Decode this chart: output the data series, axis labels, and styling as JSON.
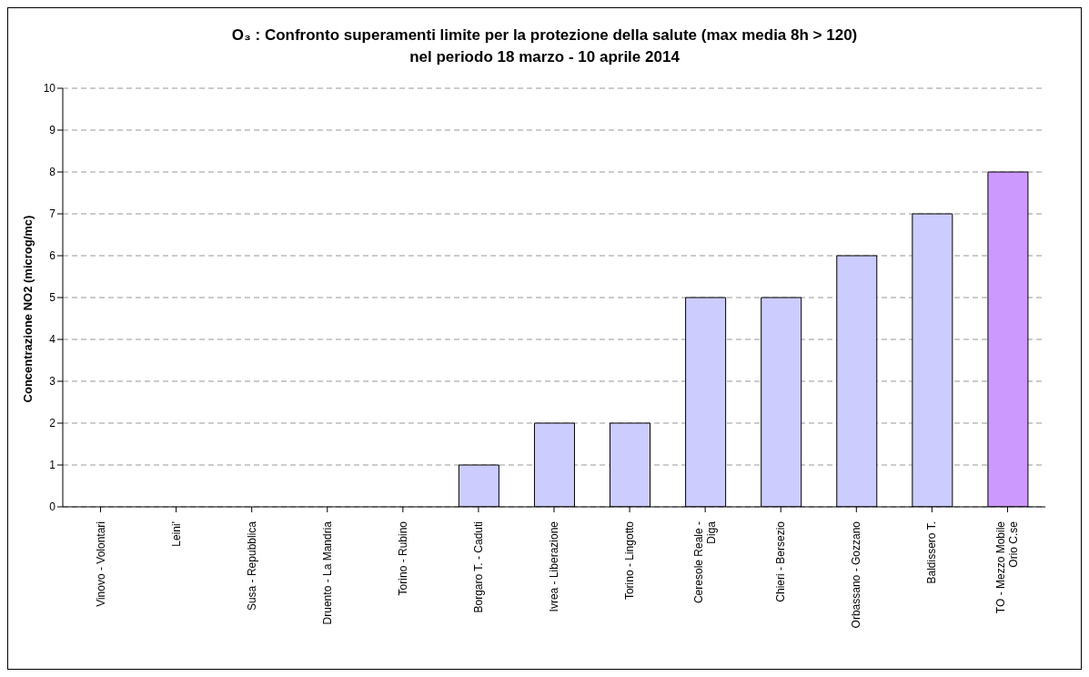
{
  "chart_data": {
    "type": "bar",
    "title": "O₃ : Confronto superamenti limite per la protezione della salute (max media 8h > 120)",
    "subtitle": "nel periodo  18 marzo - 10 aprile 2014",
    "ylabel": "Concentrazione NO2 (microg/mc)",
    "categories": [
      "Vinovo - Volontari",
      "Leini'",
      "Susa - Repubblica",
      "Druento - La Mandria",
      "Torino - Rubino",
      "Borgaro T. - Caduti",
      "Ivrea - Liberazione",
      "Torino - Lingotto",
      "Ceresole Reale - Diga",
      "Chieri - Bersezio",
      "Orbassano - Gozzano",
      "Baldissero T.",
      "TO - Mezzo Mobile Orio C.se"
    ],
    "values": [
      0,
      0,
      0,
      0,
      0,
      1,
      2,
      2,
      5,
      5,
      6,
      7,
      8
    ],
    "colors": [
      "#ccccff",
      "#ccccff",
      "#ccccff",
      "#ccccff",
      "#ccccff",
      "#ccccff",
      "#ccccff",
      "#ccccff",
      "#ccccff",
      "#ccccff",
      "#ccccff",
      "#ccccff",
      "#cc99ff"
    ],
    "ylim": [
      0,
      10
    ],
    "yticks": [
      0,
      1,
      2,
      3,
      4,
      5,
      6,
      7,
      8,
      9,
      10
    ],
    "grid": "y",
    "legend": false
  }
}
